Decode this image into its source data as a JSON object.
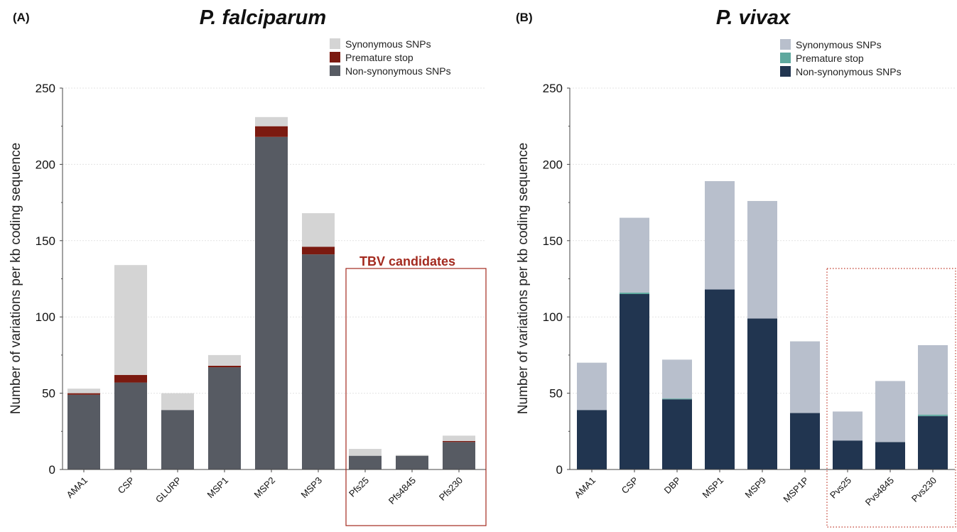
{
  "chart_data": [
    {
      "type": "bar",
      "stacked": true,
      "panel_label": "(A)",
      "title": "P. falciparum",
      "ylabel": "Number of variations per kb coding sequence",
      "xlabel": "",
      "ylim": [
        0,
        250
      ],
      "yticks": [
        0,
        50,
        100,
        150,
        200,
        250
      ],
      "grid": true,
      "legend_position": "top-right",
      "categories": [
        "AMA1",
        "CSP",
        "GLURP",
        "MSP1",
        "MSP2",
        "MSP3",
        "Pfs25",
        "Pfs4845",
        "Pfs230"
      ],
      "series": [
        {
          "name": "Non-synonymous SNPs",
          "color": "#575b63",
          "values": [
            49,
            57,
            39,
            67,
            218,
            141,
            9,
            9,
            18
          ]
        },
        {
          "name": "Premature stop",
          "color": "#7b1a10",
          "values": [
            1,
            5,
            0,
            1,
            7,
            5,
            0,
            0,
            0.7
          ]
        },
        {
          "name": "Synonymous SNPs",
          "color": "#d4d4d4",
          "values": [
            3,
            72,
            11,
            7,
            6,
            22,
            4.5,
            0.5,
            3.5
          ]
        }
      ],
      "legend_order": [
        "Synonymous SNPs",
        "Premature stop",
        "Non-synonymous SNPs"
      ],
      "highlight_box": {
        "label": "TBV candidates",
        "categories": [
          "Pfs25",
          "Pfs4845",
          "Pfs230"
        ],
        "color": "#a32a1f",
        "style": "solid"
      }
    },
    {
      "type": "bar",
      "stacked": true,
      "panel_label": "(B)",
      "title": "P. vivax",
      "ylabel": "Number of variations per kb coding sequence",
      "xlabel": "",
      "ylim": [
        0,
        250
      ],
      "yticks": [
        0,
        50,
        100,
        150,
        200,
        250
      ],
      "grid": true,
      "legend_position": "top-right",
      "categories": [
        "AMA1",
        "CSP",
        "DBP",
        "MSP1",
        "MSP9",
        "MSP1P",
        "Pvs25",
        "Pvs4845",
        "Pvs230"
      ],
      "series": [
        {
          "name": "Non-synonymous SNPs",
          "color": "#213550",
          "values": [
            39,
            115,
            46,
            118,
            99,
            37,
            19,
            18,
            35
          ]
        },
        {
          "name": "Premature stop",
          "color": "#5ea89e",
          "values": [
            0,
            1,
            0.5,
            0,
            0,
            0,
            0,
            0,
            1
          ]
        },
        {
          "name": "Synonymous SNPs",
          "color": "#b8bfcc",
          "values": [
            31,
            49,
            25.5,
            71,
            77,
            47,
            19,
            40,
            45.5
          ]
        }
      ],
      "legend_order": [
        "Synonymous SNPs",
        "Premature stop",
        "Non-synonymous SNPs"
      ],
      "highlight_box": {
        "label": "",
        "categories": [
          "Pvs25",
          "Pvs4845",
          "Pvs230"
        ],
        "color": "#c0392b",
        "style": "dotted"
      }
    }
  ]
}
